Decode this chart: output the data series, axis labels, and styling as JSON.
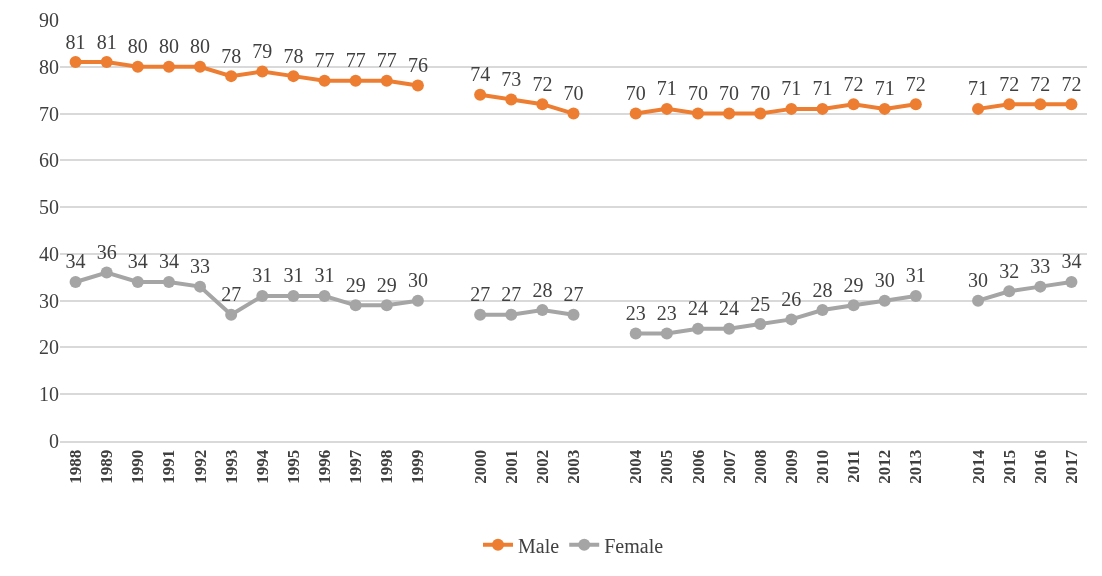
{
  "chart_data": {
    "type": "line",
    "categories": [
      "1988",
      "1989",
      "1990",
      "1991",
      "1992",
      "1993",
      "1994",
      "1995",
      "1996",
      "1997",
      "1998",
      "1999",
      null,
      "2000",
      "2001",
      "2002",
      "2003",
      null,
      "2004",
      "2005",
      "2006",
      "2007",
      "2008",
      "2009",
      "2010",
      "2011",
      "2012",
      "2013",
      null,
      "2014",
      "2015",
      "2016",
      "2017"
    ],
    "series": [
      {
        "name": "Male",
        "color": "#ed7d31",
        "values": [
          81,
          81,
          80,
          80,
          80,
          78,
          79,
          78,
          77,
          77,
          77,
          76,
          null,
          74,
          73,
          72,
          70,
          null,
          70,
          71,
          70,
          70,
          70,
          71,
          71,
          72,
          71,
          72,
          null,
          71,
          72,
          72,
          72
        ]
      },
      {
        "name": "Female",
        "color": "#a5a5a5",
        "values": [
          34,
          36,
          34,
          34,
          33,
          27,
          31,
          31,
          31,
          29,
          29,
          30,
          null,
          27,
          27,
          28,
          27,
          null,
          23,
          23,
          24,
          24,
          25,
          26,
          28,
          29,
          30,
          31,
          null,
          30,
          32,
          33,
          34
        ]
      }
    ],
    "ylim": [
      0,
      90
    ],
    "yticks": [
      0,
      10,
      20,
      30,
      40,
      50,
      60,
      70,
      80,
      90
    ],
    "grid": "y",
    "legend": "bottom",
    "marker": "circle",
    "line_style": "solid",
    "data_labels": true
  }
}
